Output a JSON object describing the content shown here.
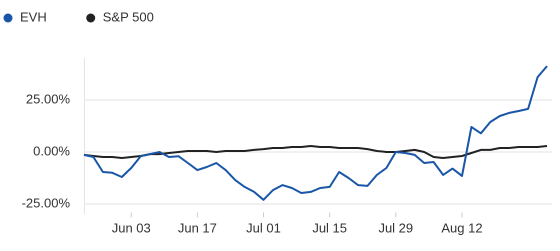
{
  "chart_data": {
    "type": "line",
    "categories": [
      null,
      null,
      null,
      null,
      null,
      "Jun 03",
      null,
      null,
      null,
      null,
      null,
      null,
      "Jun 17",
      null,
      null,
      null,
      null,
      null,
      null,
      "Jul 01",
      null,
      null,
      null,
      null,
      null,
      null,
      "Jul 15",
      null,
      null,
      null,
      null,
      null,
      null,
      "Jul 29",
      null,
      null,
      null,
      null,
      null,
      null,
      "Aug 12",
      null,
      null,
      null,
      null,
      null,
      null,
      null,
      null,
      null
    ],
    "series": [
      {
        "name": "EVH",
        "color": "#1a56a8",
        "values": [
          -1.4,
          -2.4,
          -9.6,
          -10,
          -12,
          -7.7,
          -2,
          -1,
          0,
          -2.4,
          -2,
          -5.3,
          -8.7,
          -7.2,
          -5.3,
          -8.7,
          -13.5,
          -16.8,
          -19.2,
          -23,
          -18.3,
          -15.9,
          -17.3,
          -19.7,
          -19.2,
          -17.3,
          -16.8,
          -9.6,
          -12.5,
          -15.9,
          -16.3,
          -11,
          -7.7,
          0,
          -0.5,
          -1.4,
          -5.3,
          -4.8,
          -11,
          -8,
          -11.5,
          12,
          9,
          14.4,
          17.3,
          18.8,
          19.7,
          20.7,
          36,
          41.3
        ]
      },
      {
        "name": "S&P 500",
        "color": "#222222",
        "values": [
          -1.4,
          -1.9,
          -2.4,
          -2.4,
          -2.9,
          -2.4,
          -1.9,
          -1,
          -1,
          -0.5,
          0,
          0.5,
          0.5,
          0.5,
          0,
          0.5,
          0.5,
          0.5,
          1,
          1.4,
          1.9,
          1.9,
          2.4,
          2.4,
          2.9,
          2.4,
          2.4,
          1.9,
          1.9,
          1.9,
          1.4,
          0.5,
          0,
          0,
          0.5,
          1,
          0,
          -2.4,
          -2.9,
          -2.4,
          -1.9,
          -0.5,
          1,
          1,
          1.9,
          1.9,
          2.4,
          2.4,
          2.4,
          2.9
        ]
      }
    ],
    "ylim": [
      -30,
      45
    ],
    "yticks": [
      {
        "value": 25,
        "label": "25.00%"
      },
      {
        "value": 0,
        "label": "0.00%"
      },
      {
        "value": -25,
        "label": "-25.00%"
      }
    ],
    "grid": true
  }
}
